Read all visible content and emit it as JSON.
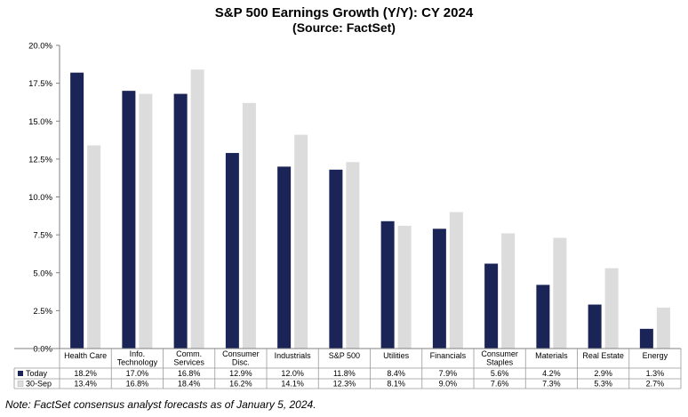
{
  "title": "S&P 500 Earnings Growth (Y/Y): CY 2024",
  "subtitle": "(Source: FactSet)",
  "note": "Note: FactSet consensus analyst forecasts as of January 5, 2024.",
  "colors": {
    "today": "#1b2456",
    "sep": "#dcdcdc",
    "axis": "#808080",
    "table_border": "#999999"
  },
  "chart_data": {
    "type": "bar",
    "title": "S&P 500 Earnings Growth (Y/Y): CY 2024",
    "subtitle": "(Source: FactSet)",
    "categories": [
      [
        "Health Care"
      ],
      [
        "Info.",
        "Technology"
      ],
      [
        "Comm.",
        "Services"
      ],
      [
        "Consumer",
        "Disc."
      ],
      [
        "Industrials"
      ],
      [
        "S&P 500"
      ],
      [
        "Utilities"
      ],
      [
        "Financials"
      ],
      [
        "Consumer",
        "Staples"
      ],
      [
        "Materials"
      ],
      [
        "Real Estate"
      ],
      [
        "Energy"
      ]
    ],
    "series": [
      {
        "name": "Today",
        "values": [
          18.2,
          17.0,
          16.8,
          12.9,
          12.0,
          11.8,
          8.4,
          7.9,
          5.6,
          4.2,
          2.9,
          1.3
        ],
        "labels": [
          "18.2%",
          "17.0%",
          "16.8%",
          "12.9%",
          "12.0%",
          "11.8%",
          "8.4%",
          "7.9%",
          "5.6%",
          "4.2%",
          "2.9%",
          "1.3%"
        ]
      },
      {
        "name": "30-Sep",
        "values": [
          13.4,
          16.8,
          18.4,
          16.2,
          14.1,
          12.3,
          8.1,
          9.0,
          7.6,
          7.3,
          5.3,
          2.7
        ],
        "labels": [
          "13.4%",
          "16.8%",
          "18.4%",
          "16.2%",
          "14.1%",
          "12.3%",
          "8.1%",
          "9.0%",
          "7.6%",
          "7.3%",
          "5.3%",
          "2.7%"
        ]
      }
    ],
    "yticks": [
      "0.0%",
      "2.5%",
      "5.0%",
      "7.5%",
      "10.0%",
      "12.5%",
      "15.0%",
      "17.5%",
      "20.0%"
    ],
    "ylim": [
      0,
      20
    ],
    "legend": "data table below chart"
  }
}
